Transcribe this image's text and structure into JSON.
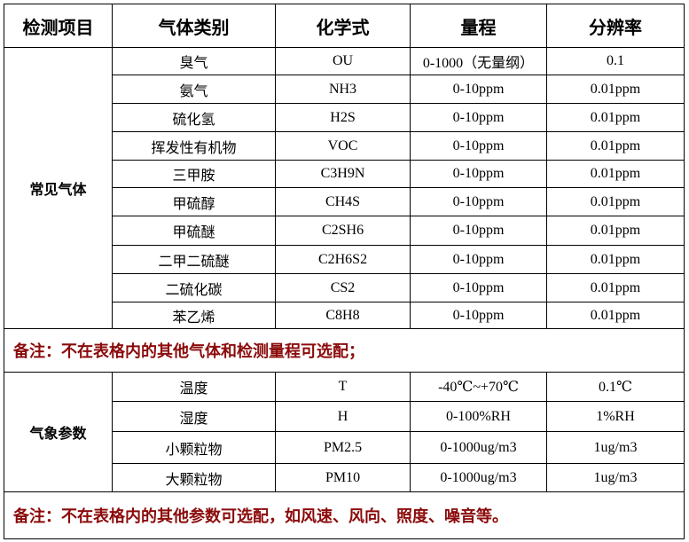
{
  "headers": [
    "检测项目",
    "气体类别",
    "化学式",
    "量程",
    "分辨率"
  ],
  "groups": [
    {
      "category": "常见气体",
      "rows": [
        {
          "name": "臭气",
          "formula": "OU",
          "range": "0-1000（无量纲）",
          "resolution": "0.1"
        },
        {
          "name": "氨气",
          "formula": "NH3",
          "range": "0-10ppm",
          "resolution": "0.01ppm"
        },
        {
          "name": "硫化氢",
          "formula": "H2S",
          "range": "0-10ppm",
          "resolution": "0.01ppm"
        },
        {
          "name": "挥发性有机物",
          "formula": "VOC",
          "range": "0-10ppm",
          "resolution": "0.01ppm"
        },
        {
          "name": "三甲胺",
          "formula": "C3H9N",
          "range": "0-10ppm",
          "resolution": "0.01ppm"
        },
        {
          "name": "甲硫醇",
          "formula": "CH4S",
          "range": "0-10ppm",
          "resolution": "0.01ppm"
        },
        {
          "name": "甲硫醚",
          "formula": "C2SH6",
          "range": "0-10ppm",
          "resolution": "0.01ppm"
        },
        {
          "name": "二甲二硫醚",
          "formula": "C2H6S2",
          "range": "0-10ppm",
          "resolution": "0.01ppm"
        },
        {
          "name": "二硫化碳",
          "formula": "CS2",
          "range": "0-10ppm",
          "resolution": "0.01ppm"
        },
        {
          "name": "苯乙烯",
          "formula": "C8H8",
          "range": "0-10ppm",
          "resolution": "0.01ppm"
        }
      ],
      "note": "备注：不在表格内的其他气体和检测量程可选配；"
    },
    {
      "category": "气象参数",
      "rows": [
        {
          "name": "温度",
          "formula": "T",
          "range": "-40℃~+70℃",
          "resolution": "0.1℃"
        },
        {
          "name": "湿度",
          "formula": "H",
          "range": "0-100%RH",
          "resolution": "1%RH"
        },
        {
          "name": "小颗粒物",
          "formula": "PM2.5",
          "range": "0-1000ug/m3",
          "resolution": "1ug/m3"
        },
        {
          "name": "大颗粒物",
          "formula": "PM10",
          "range": "0-1000ug/m3",
          "resolution": "1ug/m3"
        }
      ],
      "note": "备注：不在表格内的其他参数可选配，如风速、风向、照度、噪音等。"
    }
  ],
  "colors": {
    "note_text": "#8b0a0a",
    "border": "#000000"
  }
}
